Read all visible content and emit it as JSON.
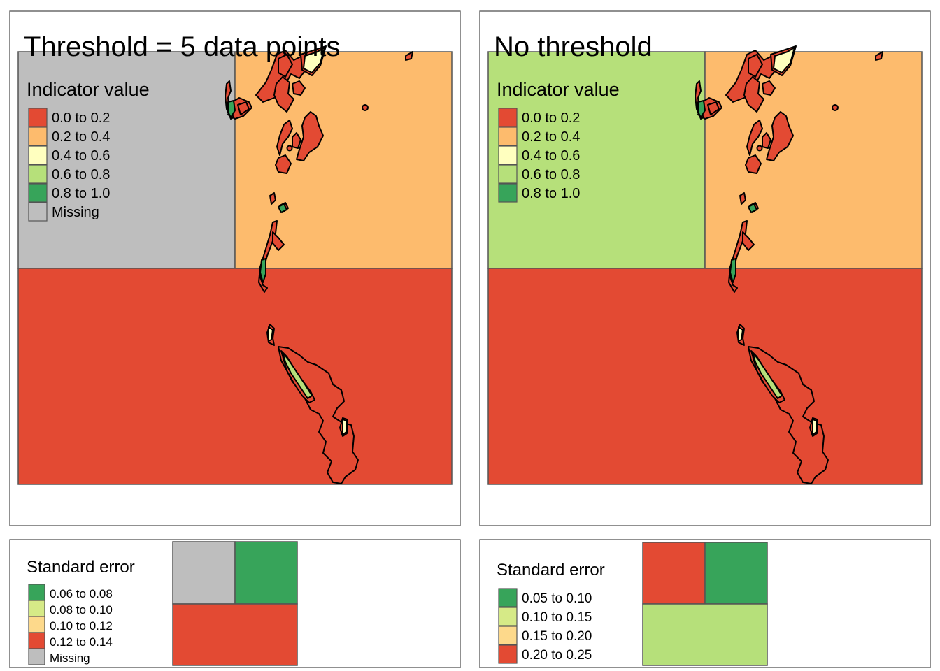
{
  "colors": {
    "red": "#e34a33",
    "orange": "#fdbb6d",
    "yellow": "#ffffbf",
    "lightgreen": "#b6e07a",
    "green": "#37a45a",
    "grey": "#bebebe",
    "se_lightgreen": "#d6ea87",
    "se_orange": "#fdd98b"
  },
  "left": {
    "title": "Threshold = 5 data points",
    "legend_title": "Indicator value",
    "legend": [
      {
        "label": "0.0 to 0.2",
        "color": "#e34a33"
      },
      {
        "label": "0.2 to 0.4",
        "color": "#fdbb6d"
      },
      {
        "label": "0.4 to 0.6",
        "color": "#ffffbf"
      },
      {
        "label": "0.6 to 0.8",
        "color": "#b6e07a"
      },
      {
        "label": "0.8 to 1.0",
        "color": "#37a45a"
      },
      {
        "label": "Missing",
        "color": "#bebebe"
      }
    ],
    "cells": {
      "top_left": "grey",
      "top_right": "orange",
      "bottom": "red"
    },
    "se": {
      "title": "Standard error",
      "legend": [
        {
          "label": "0.06 to 0.08",
          "color": "#37a45a"
        },
        {
          "label": "0.08 to 0.10",
          "color": "#d6ea87"
        },
        {
          "label": "0.10 to 0.12",
          "color": "#fdd98b"
        },
        {
          "label": "0.12 to 0.14",
          "color": "#e34a33"
        },
        {
          "label": "Missing",
          "color": "#bebebe"
        }
      ],
      "cells": {
        "top_left": "grey",
        "top_right": "green",
        "bottom": "red"
      }
    }
  },
  "right": {
    "title": "No threshold",
    "legend_title": "Indicator value",
    "legend": [
      {
        "label": "0.0 to 0.2",
        "color": "#e34a33"
      },
      {
        "label": "0.2 to 0.4",
        "color": "#fdbb6d"
      },
      {
        "label": "0.4 to 0.6",
        "color": "#ffffbf"
      },
      {
        "label": "0.6 to 0.8",
        "color": "#b6e07a"
      },
      {
        "label": "0.8 to 1.0",
        "color": "#37a45a"
      }
    ],
    "cells": {
      "top_left": "lightgreen",
      "top_right": "orange",
      "bottom": "red"
    },
    "se": {
      "title": "Standard error",
      "legend": [
        {
          "label": "0.05 to 0.10",
          "color": "#37a45a"
        },
        {
          "label": "0.10 to 0.15",
          "color": "#d6ea87"
        },
        {
          "label": "0.15 to 0.20",
          "color": "#fdd98b"
        },
        {
          "label": "0.20 to 0.25",
          "color": "#e34a33"
        }
      ],
      "cells": {
        "top_left": "red",
        "top_right": "green",
        "bottom": "lightgreen"
      }
    }
  }
}
